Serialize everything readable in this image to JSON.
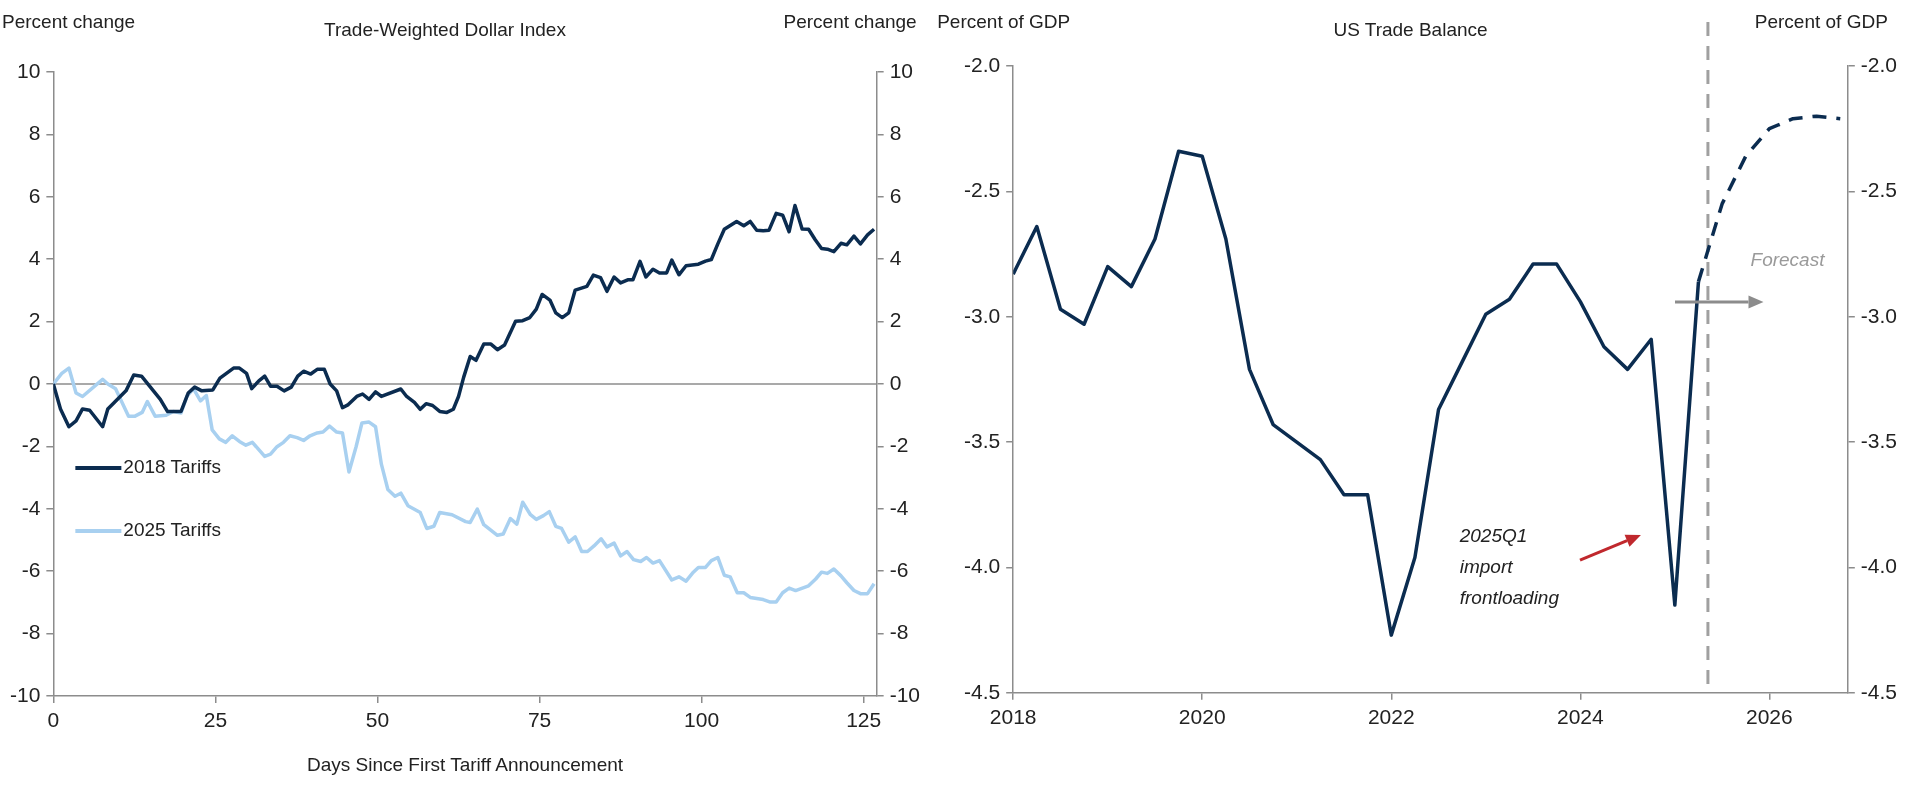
{
  "chart_data": [
    {
      "type": "line",
      "title": "Trade-Weighted Dollar Index",
      "xlabel": "Days Since First Tariff Announcement",
      "ylabel": "Percent change",
      "y2label": "Percent change",
      "xlim": [
        0,
        127
      ],
      "xticks": [
        0,
        25,
        50,
        75,
        100,
        125
      ],
      "ylim": [
        -10,
        10
      ],
      "yticks": [
        -10,
        -8,
        -6,
        -4,
        -2,
        0,
        2,
        4,
        6,
        8,
        10
      ],
      "y2lim": [
        -10,
        10
      ],
      "y2ticks": [
        -10,
        -8,
        -6,
        -4,
        -2,
        0,
        2,
        4,
        6,
        8,
        10
      ],
      "grid": false,
      "legend": "bottom left",
      "marker": "none",
      "ref_lines": [
        {
          "axis": "y",
          "value": 0,
          "color": "#8c8c8c"
        }
      ],
      "series": [
        {
          "name": "2018 Tariffs",
          "color": "#0b2c50",
          "x": [
            0,
            1.1,
            2.4,
            3.5,
            4.5,
            5.6,
            7.6,
            8.4,
            11.2,
            12.4,
            13.6,
            16.5,
            17.6,
            18.6,
            19.7,
            20.8,
            21.8,
            22.9,
            24.6,
            25.7,
            27.8,
            28.7,
            29.8,
            30.6,
            31.7,
            32.6,
            33.5,
            34.5,
            35.6,
            36.7,
            37.7,
            38.6,
            39.7,
            40.7,
            41.8,
            42.7,
            43.7,
            44.6,
            45.5,
            46.8,
            47.7,
            48.7,
            49.7,
            50.6,
            53.6,
            54.5,
            55.7,
            56.6,
            57.5,
            58.5,
            59.6,
            60.7,
            61.7,
            62.5,
            63.3,
            64.3,
            65.2,
            66.4,
            67.5,
            68.5,
            69.6,
            71.3,
            72.4,
            73.5,
            74.5,
            75.4,
            76.6,
            77.5,
            78.5,
            79.5,
            80.5,
            82.3,
            83.3,
            84.4,
            85.4,
            86.5,
            87.5,
            88.6,
            89.4,
            90.5,
            91.4,
            92.5,
            93.5,
            94.6,
            95.4,
            96.5,
            97.6,
            99.5,
            100.6,
            101.5,
            102.5,
            103.5,
            105.4,
            106.5,
            107.5,
            108.5,
            109.5,
            110.4,
            111.5,
            112.5,
            113.5,
            114.4,
            115.5,
            116.5,
            117.5,
            118.5,
            119.4,
            120.4,
            121.5,
            122.4,
            123.5,
            124.5,
            125.6,
            126.6
          ],
          "values": [
            0,
            -0.8,
            -1.37,
            -1.18,
            -0.8,
            -0.84,
            -1.37,
            -0.8,
            -0.22,
            0.29,
            0.25,
            -0.49,
            -0.88,
            -0.88,
            -0.88,
            -0.29,
            -0.1,
            -0.22,
            -0.19,
            0.19,
            0.51,
            0.51,
            0.34,
            -0.15,
            0.1,
            0.25,
            -0.07,
            -0.07,
            -0.22,
            -0.1,
            0.25,
            0.41,
            0.32,
            0.47,
            0.47,
            0,
            -0.22,
            -0.76,
            -0.66,
            -0.4,
            -0.32,
            -0.49,
            -0.25,
            -0.4,
            -0.16,
            -0.4,
            -0.59,
            -0.81,
            -0.63,
            -0.69,
            -0.88,
            -0.91,
            -0.81,
            -0.4,
            0.22,
            0.88,
            0.76,
            1.28,
            1.28,
            1.1,
            1.25,
            2.01,
            2.03,
            2.13,
            2.4,
            2.87,
            2.69,
            2.28,
            2.13,
            2.28,
            3.01,
            3.13,
            3.49,
            3.41,
            2.97,
            3.43,
            3.24,
            3.34,
            3.34,
            3.93,
            3.43,
            3.68,
            3.56,
            3.56,
            3.97,
            3.5,
            3.79,
            3.84,
            3.94,
            3.99,
            4.49,
            4.96,
            5.21,
            5.07,
            5.21,
            4.93,
            4.91,
            4.93,
            5.47,
            5.41,
            4.88,
            5.72,
            4.97,
            4.96,
            4.63,
            4.34,
            4.32,
            4.24,
            4.51,
            4.46,
            4.74,
            4.49,
            4.78,
            4.96
          ]
        },
        {
          "name": "2025 Tariffs",
          "color": "#a8d0f0",
          "x": [
            0,
            1.3,
            2.4,
            3.5,
            4.5,
            7.6,
            8.4,
            9.6,
            11.6,
            12.6,
            13.7,
            14.5,
            15.7,
            17.4,
            18.5,
            19.7,
            20.6,
            21.6,
            22.7,
            23.6,
            24.5,
            25.6,
            26.6,
            27.6,
            28.7,
            29.7,
            30.7,
            32.6,
            33.5,
            34.5,
            35.5,
            36.5,
            37.6,
            38.6,
            39.6,
            40.7,
            41.6,
            42.6,
            43.7,
            44.6,
            45.6,
            46.7,
            47.6,
            48.7,
            49.7,
            50.6,
            51.6,
            52.7,
            53.6,
            54.7,
            56.6,
            57.6,
            58.7,
            59.6,
            61.5,
            63.6,
            64.3,
            65.4,
            66.4,
            68.5,
            69.4,
            70.5,
            71.5,
            72.4,
            73.6,
            74.5,
            75.6,
            76.5,
            77.5,
            78.4,
            79.5,
            80.5,
            81.5,
            82.4,
            83.4,
            84.5,
            85.4,
            86.5,
            87.5,
            88.5,
            89.5,
            90.6,
            91.5,
            92.5,
            93.5,
            95.4,
            96.5,
            97.6,
            98.6,
            99.5,
            100.6,
            101.5,
            102.5,
            103.5,
            104.4,
            105.5,
            106.5,
            107.5,
            109.5,
            110.6,
            111.5,
            112.5,
            113.5,
            114.5,
            116.5,
            117.6,
            118.5,
            119.4,
            120.4,
            121.5,
            122.4,
            123.5,
            124.5,
            125.6,
            126.6
          ],
          "values": [
            0,
            0.34,
            0.51,
            -0.29,
            -0.4,
            0.15,
            0,
            -0.15,
            -1.03,
            -1.03,
            -0.91,
            -0.56,
            -1.03,
            -1.0,
            -0.88,
            -0.93,
            -0.4,
            -0.15,
            -0.54,
            -0.37,
            -1.47,
            -1.76,
            -1.87,
            -1.66,
            -1.84,
            -1.96,
            -1.87,
            -2.32,
            -2.25,
            -2.01,
            -1.87,
            -1.66,
            -1.72,
            -1.81,
            -1.66,
            -1.57,
            -1.54,
            -1.35,
            -1.54,
            -1.57,
            -2.82,
            -2.01,
            -1.25,
            -1.22,
            -1.37,
            -2.57,
            -3.38,
            -3.6,
            -3.5,
            -3.9,
            -4.12,
            -4.63,
            -4.56,
            -4.12,
            -4.19,
            -4.41,
            -4.44,
            -4.01,
            -4.51,
            -4.85,
            -4.81,
            -4.31,
            -4.49,
            -3.79,
            -4.19,
            -4.34,
            -4.22,
            -4.09,
            -4.56,
            -4.63,
            -5.07,
            -4.9,
            -5.37,
            -5.37,
            -5.19,
            -4.96,
            -5.22,
            -5.1,
            -5.51,
            -5.37,
            -5.63,
            -5.69,
            -5.56,
            -5.74,
            -5.66,
            -6.28,
            -6.18,
            -6.32,
            -6.06,
            -5.88,
            -5.88,
            -5.66,
            -5.56,
            -6.13,
            -6.18,
            -6.69,
            -6.69,
            -6.84,
            -6.91,
            -6.99,
            -6.99,
            -6.69,
            -6.54,
            -6.62,
            -6.47,
            -6.25,
            -6.03,
            -6.07,
            -5.93,
            -6.15,
            -6.37,
            -6.62,
            -6.72,
            -6.72,
            -6.4
          ]
        }
      ]
    },
    {
      "type": "line",
      "title": "US Trade Balance",
      "ylabel": "Percent of GDP",
      "y2label": "Percent of GDP",
      "xlim": [
        2018,
        2026.83
      ],
      "xticks": [
        2018,
        2020,
        2022,
        2024,
        2026
      ],
      "ylim": [
        -4.5,
        -2
      ],
      "yticks": [
        {
          "value": -4.5,
          "label": "-4.5"
        },
        {
          "value": -4,
          "label": "-4.0"
        },
        {
          "value": -3.5,
          "label": "-3.5"
        },
        {
          "value": -3,
          "label": "-3.0"
        },
        {
          "value": -2.5,
          "label": "-2.5"
        },
        {
          "value": -2,
          "label": "-2.0"
        }
      ],
      "y2lim": [
        -4.5,
        -2
      ],
      "y2ticks": [
        {
          "value": -4.5,
          "label": "-4.5"
        },
        {
          "value": -4,
          "label": "-4.0"
        },
        {
          "value": -3.5,
          "label": "-3.5"
        },
        {
          "value": -3,
          "label": "-3.0"
        },
        {
          "value": -2.5,
          "label": "-2.5"
        },
        {
          "value": -2,
          "label": "-2.0"
        }
      ],
      "grid": false,
      "legend": false,
      "marker": "none",
      "ref_lines": [
        {
          "axis": "x",
          "value": 2025.35,
          "color": "#a0a0a0",
          "line_style": "dashed"
        }
      ],
      "annotations": [
        "2025Q1 import frontloading",
        "Forecast"
      ],
      "series": [
        {
          "color": "#0b2c50",
          "line_style": "solid",
          "x": [
            2018,
            2018.25,
            2018.5,
            2018.75,
            2019,
            2019.25,
            2019.5,
            2019.75,
            2020,
            2020.25,
            2020.5,
            2020.75,
            2021,
            2021.25,
            2021.5,
            2021.75,
            2022,
            2022.25,
            2022.5,
            2022.75,
            2023,
            2023.25,
            2023.5,
            2023.75,
            2024,
            2024.25,
            2024.5,
            2024.75,
            2025,
            2025.25
          ],
          "values": [
            -2.83,
            -2.64,
            -2.97,
            -3.03,
            -2.8,
            -2.88,
            -2.69,
            -2.34,
            -2.36,
            -2.69,
            -3.21,
            -3.43,
            -3.5,
            -3.57,
            -3.71,
            -3.71,
            -4.27,
            -3.96,
            -3.37,
            -3.18,
            -2.99,
            -2.93,
            -2.79,
            -2.79,
            -2.94,
            -3.12,
            -3.21,
            -3.09,
            -4.15,
            -2.86
          ]
        },
        {
          "color": "#0b2c50",
          "line_style": "dashed",
          "x": [
            2025.25,
            2025.5,
            2025.75,
            2026,
            2026.25,
            2026.5,
            2026.75
          ],
          "values": [
            -2.86,
            -2.55,
            -2.36,
            -2.25,
            -2.21,
            -2.2,
            -2.21
          ]
        }
      ]
    }
  ]
}
